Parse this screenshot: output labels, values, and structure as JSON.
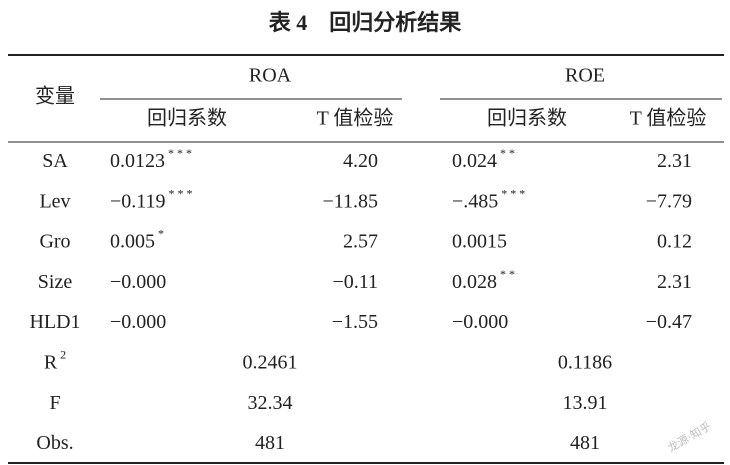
{
  "title": "表 4　回归分析结果",
  "header": {
    "variable": "变量",
    "groups": [
      "ROA",
      "ROE"
    ],
    "subheaders": [
      "回归系数",
      "T 值检验",
      "回归系数",
      "T 值检验"
    ]
  },
  "rows": [
    {
      "label": {
        "text": "SA"
      },
      "cells": [
        {
          "text": "0.0123",
          "sup": "* * *"
        },
        {
          "text": "4.20"
        },
        {
          "text": "0.024",
          "sup": "* *"
        },
        {
          "text": "2.31"
        }
      ]
    },
    {
      "label": {
        "text": "Lev"
      },
      "cells": [
        {
          "text": "−0.119",
          "sup": "* * *"
        },
        {
          "text": "−11.85"
        },
        {
          "text": "−.485",
          "sup": "* * *"
        },
        {
          "text": "−7.79"
        }
      ]
    },
    {
      "label": {
        "text": "Gro"
      },
      "cells": [
        {
          "text": "0.005",
          "sup": "*"
        },
        {
          "text": "2.57"
        },
        {
          "text": "0.0015"
        },
        {
          "text": "0.12"
        }
      ]
    },
    {
      "label": {
        "text": "Size"
      },
      "cells": [
        {
          "text": "−0.000"
        },
        {
          "text": "−0.11"
        },
        {
          "text": "0.028",
          "sup": "* *"
        },
        {
          "text": "2.31"
        }
      ]
    },
    {
      "label": {
        "text": "HLD1"
      },
      "cells": [
        {
          "text": "−0.000"
        },
        {
          "text": "−1.55"
        },
        {
          "text": "−0.000"
        },
        {
          "text": "−0.47"
        }
      ]
    }
  ],
  "summary": [
    {
      "label": {
        "text": "R",
        "sup": "2"
      },
      "cells": [
        {
          "text": "0.2461"
        },
        {
          "text": "0.1186"
        }
      ]
    },
    {
      "label": {
        "text": "F"
      },
      "cells": [
        {
          "text": "32.34"
        },
        {
          "text": "13.91"
        }
      ]
    },
    {
      "label": {
        "text": "Obs."
      },
      "cells": [
        {
          "text": "481"
        },
        {
          "text": "481"
        }
      ]
    }
  ],
  "watermark": "龙源·知乎"
}
